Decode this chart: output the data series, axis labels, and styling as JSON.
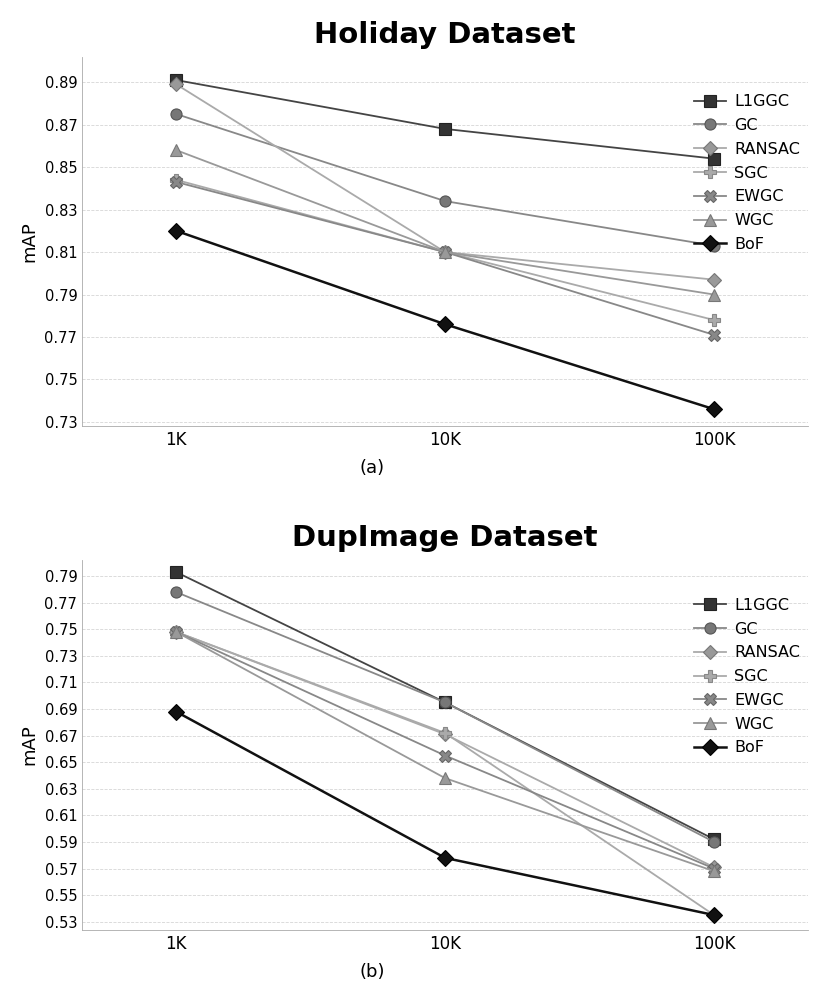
{
  "holiday": {
    "title": "Holiday Dataset",
    "xlabel_ticks": [
      "1K",
      "10K",
      "100K"
    ],
    "ylabel": "mAP",
    "ylim": [
      0.728,
      0.902
    ],
    "yticks": [
      0.73,
      0.75,
      0.77,
      0.79,
      0.81,
      0.83,
      0.85,
      0.87,
      0.89
    ],
    "series": [
      {
        "name": "L1GGC",
        "values": [
          0.891,
          0.868,
          0.854
        ],
        "color": "#444444",
        "marker": "s",
        "ms": 8,
        "mfc": "#333333",
        "mec": "#222222",
        "lw": 1.3
      },
      {
        "name": "GC",
        "values": [
          0.875,
          0.834,
          0.813
        ],
        "color": "#888888",
        "marker": "o",
        "ms": 8,
        "mfc": "#777777",
        "mec": "#555555",
        "lw": 1.3
      },
      {
        "name": "RANSAC",
        "values": [
          0.889,
          0.81,
          0.797
        ],
        "color": "#aaaaaa",
        "marker": "D",
        "ms": 7,
        "mfc": "#999999",
        "mec": "#777777",
        "lw": 1.3
      },
      {
        "name": "SGC",
        "values": [
          0.844,
          0.81,
          0.778
        ],
        "color": "#aaaaaa",
        "marker": "P",
        "ms": 9,
        "mfc": "#aaaaaa",
        "mec": "#888888",
        "lw": 1.3
      },
      {
        "name": "EWGC",
        "values": [
          0.843,
          0.81,
          0.771
        ],
        "color": "#888888",
        "marker": "X",
        "ms": 9,
        "mfc": "#888888",
        "mec": "#666666",
        "lw": 1.3
      },
      {
        "name": "WGC",
        "values": [
          0.858,
          0.81,
          0.79
        ],
        "color": "#999999",
        "marker": "^",
        "ms": 8,
        "mfc": "#999999",
        "mec": "#777777",
        "lw": 1.3
      },
      {
        "name": "BoF",
        "values": [
          0.82,
          0.776,
          0.736
        ],
        "color": "#111111",
        "marker": "D",
        "ms": 8,
        "mfc": "#111111",
        "mec": "#000000",
        "lw": 1.8
      }
    ],
    "caption": "(a)"
  },
  "dupimage": {
    "title": "DupImage Dataset",
    "xlabel_ticks": [
      "1K",
      "10K",
      "100K"
    ],
    "ylabel": "mAP",
    "ylim": [
      0.524,
      0.802
    ],
    "yticks": [
      0.53,
      0.55,
      0.57,
      0.59,
      0.61,
      0.63,
      0.65,
      0.67,
      0.69,
      0.71,
      0.73,
      0.75,
      0.77,
      0.79
    ],
    "series": [
      {
        "name": "L1GGC",
        "values": [
          0.793,
          0.695,
          0.592
        ],
        "color": "#444444",
        "marker": "s",
        "ms": 8,
        "mfc": "#333333",
        "mec": "#222222",
        "lw": 1.3
      },
      {
        "name": "GC",
        "values": [
          0.778,
          0.695,
          0.59
        ],
        "color": "#888888",
        "marker": "o",
        "ms": 8,
        "mfc": "#777777",
        "mec": "#555555",
        "lw": 1.3
      },
      {
        "name": "RANSAC",
        "values": [
          0.748,
          0.671,
          0.571
        ],
        "color": "#aaaaaa",
        "marker": "D",
        "ms": 7,
        "mfc": "#999999",
        "mec": "#777777",
        "lw": 1.3
      },
      {
        "name": "SGC",
        "values": [
          0.748,
          0.672,
          0.535
        ],
        "color": "#aaaaaa",
        "marker": "P",
        "ms": 9,
        "mfc": "#aaaaaa",
        "mec": "#888888",
        "lw": 1.3
      },
      {
        "name": "EWGC",
        "values": [
          0.748,
          0.655,
          0.57
        ],
        "color": "#888888",
        "marker": "X",
        "ms": 9,
        "mfc": "#888888",
        "mec": "#666666",
        "lw": 1.3
      },
      {
        "name": "WGC",
        "values": [
          0.748,
          0.638,
          0.568
        ],
        "color": "#999999",
        "marker": "^",
        "ms": 8,
        "mfc": "#999999",
        "mec": "#777777",
        "lw": 1.3
      },
      {
        "name": "BoF",
        "values": [
          0.688,
          0.578,
          0.535
        ],
        "color": "#111111",
        "marker": "D",
        "ms": 8,
        "mfc": "#111111",
        "mec": "#000000",
        "lw": 1.8
      }
    ],
    "caption": "(b)"
  },
  "bg_color": "#ffffff",
  "grid_color": "#cccccc",
  "legend_marker_map": {
    "L1GGC": {
      "marker": "s",
      "color": "#444444",
      "mfc": "#333333"
    },
    "GC": {
      "marker": "o",
      "color": "#888888",
      "mfc": "#777777"
    },
    "RANSAC": {
      "marker": "D",
      "color": "#aaaaaa",
      "mfc": "#999999"
    },
    "SGC": {
      "marker": "P",
      "color": "#aaaaaa",
      "mfc": "#aaaaaa"
    },
    "EWGC": {
      "marker": "X",
      "color": "#888888",
      "mfc": "#888888"
    },
    "WGC": {
      "marker": "^",
      "color": "#999999",
      "mfc": "#999999"
    },
    "BoF": {
      "marker": "D",
      "color": "#111111",
      "mfc": "#111111"
    }
  }
}
